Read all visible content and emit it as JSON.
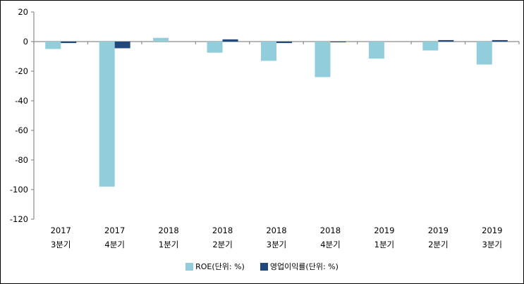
{
  "colors": {
    "roe_series": "#92CDDC",
    "op_series": "#1F497D",
    "axis_line": "#8C8C8C",
    "label_text": "#000000",
    "background": "#FFFFFF"
  },
  "chart_data": {
    "type": "bar",
    "title": "",
    "xlabel": "",
    "ylabel": "",
    "categories": [
      "2017 3분기",
      "2017 4분기",
      "2018 1분기",
      "2018 2분기",
      "2018 3분기",
      "2018 4분기",
      "2019 1분기",
      "2019 2분기",
      "2019 3분기"
    ],
    "series": [
      {
        "name": "ROE(단위: %)",
        "color_key": "roe_series",
        "values": [
          -5,
          -98,
          2.5,
          -7.5,
          -13,
          -24,
          -11.5,
          -6,
          -15.5
        ]
      },
      {
        "name": "영업이익률(단위: %)",
        "color_key": "op_series",
        "values": [
          -1,
          -4.5,
          0,
          1.5,
          -1,
          -0.5,
          0,
          1,
          1
        ]
      }
    ],
    "ylim": [
      -120,
      20
    ],
    "yticks": [
      20,
      0,
      -20,
      -40,
      -60,
      -80,
      -100,
      -120
    ],
    "grid": false,
    "legend_position": "bottom"
  }
}
